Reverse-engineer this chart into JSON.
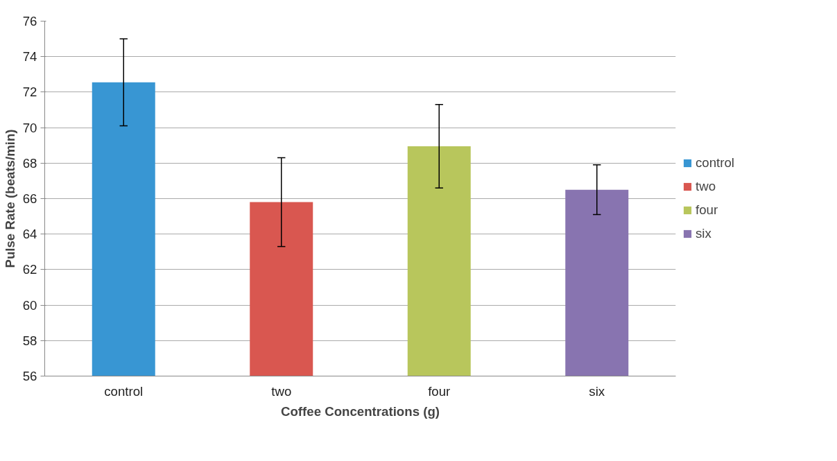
{
  "chart_data": {
    "type": "bar",
    "xlabel": "Coffee Concentrations (g)",
    "ylabel": "Pulse Rate (beats/min)",
    "categories": [
      "control",
      "two",
      "four",
      "six"
    ],
    "series": [
      {
        "name": "control",
        "color": "#3896d3",
        "values": [
          72.55,
          null,
          null,
          null
        ],
        "errors": [
          2.45,
          null,
          null,
          null
        ]
      },
      {
        "name": "two",
        "color": "#d95750",
        "values": [
          null,
          65.8,
          null,
          null
        ],
        "errors": [
          null,
          2.5,
          null,
          null
        ]
      },
      {
        "name": "four",
        "color": "#b8c65c",
        "values": [
          null,
          null,
          68.95,
          null
        ],
        "errors": [
          null,
          null,
          2.35,
          null
        ]
      },
      {
        "name": "six",
        "color": "#8874b0",
        "values": [
          null,
          null,
          null,
          66.5
        ],
        "errors": [
          null,
          null,
          null,
          1.4
        ]
      }
    ],
    "ylim": [
      56,
      76
    ],
    "yticks": [
      56,
      58,
      60,
      62,
      64,
      66,
      68,
      70,
      72,
      74,
      76
    ],
    "grid": "y",
    "legend": "right"
  }
}
